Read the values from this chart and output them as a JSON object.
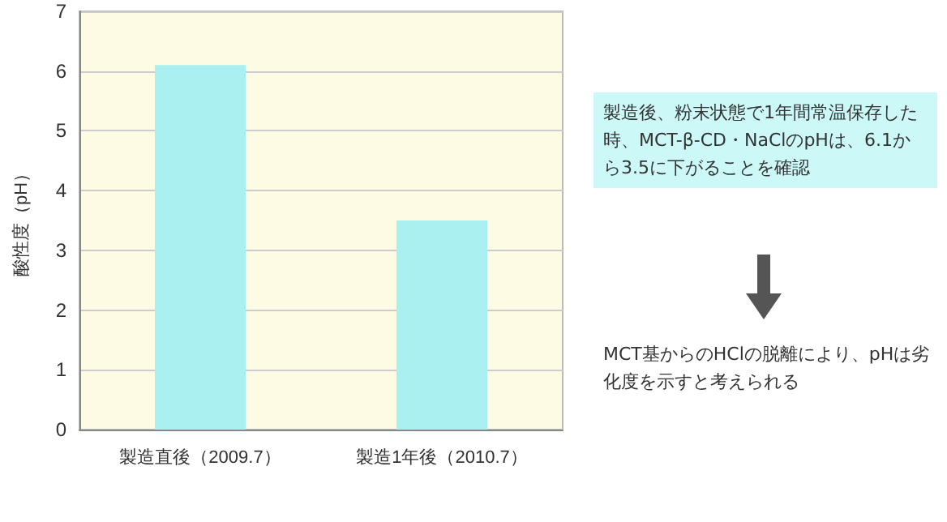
{
  "chart_data": {
    "type": "bar",
    "ylabel": "酸性度（pH）",
    "categories": [
      "製造直後（2009.7）",
      "製造1年後（2010.7）"
    ],
    "values": [
      6.1,
      3.5
    ],
    "color": "#aaf0f0",
    "ylim": [
      0,
      7
    ],
    "yticks": [
      0,
      1,
      2,
      3,
      4,
      5,
      6,
      7
    ],
    "grid": "y",
    "annotations": [
      "製造後、粉末状態で1年間常温保存した時、MCT-β-CD・NaClのpHは、6.1から3.5に下がることを確認",
      "MCT基からのHClの脱離により、pHは劣化度を示すと考えられる"
    ]
  }
}
